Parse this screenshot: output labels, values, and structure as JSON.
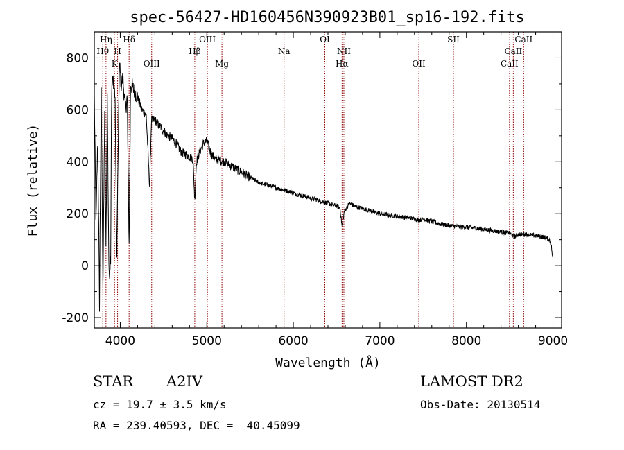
{
  "chart_data": {
    "type": "line",
    "title": "spec-56427-HD160456N390923B01_sp16-192.fits",
    "xlabel": "Wavelength (Å)",
    "ylabel": "Flux (relative)",
    "xlim": [
      3700,
      9100
    ],
    "ylim": [
      -240,
      900
    ],
    "xticks": [
      4000,
      5000,
      6000,
      7000,
      8000,
      9000
    ],
    "yticks": [
      -200,
      0,
      200,
      400,
      600,
      800
    ],
    "grid": false,
    "line_color": "#000000",
    "marker_color": "#8b0000",
    "series": [
      {
        "x": [
          3700,
          3720,
          3740,
          3760,
          3780,
          3800,
          3820,
          3835,
          3850,
          3870,
          3889,
          3900,
          3920,
          3940,
          3960,
          3970,
          3990,
          4010,
          4030,
          4060,
          4080,
          4102,
          4120,
          4150,
          4200,
          4250,
          4300,
          4340,
          4360,
          4400,
          4450,
          4500,
          4550,
          4600,
          4650,
          4700,
          4750,
          4800,
          4840,
          4861,
          4880,
          4920,
          4960,
          5000,
          5050,
          5100,
          5200,
          5300,
          5400,
          5500,
          5600,
          5700,
          5800,
          5900,
          6000,
          6100,
          6200,
          6300,
          6400,
          6500,
          6540,
          6563,
          6590,
          6650,
          6700,
          6800,
          6900,
          7000,
          7100,
          7200,
          7300,
          7400,
          7450,
          7500,
          7600,
          7700,
          7800,
          7900,
          8000,
          8100,
          8200,
          8300,
          8400,
          8500,
          8550,
          8600,
          8700,
          8800,
          8900,
          8960,
          8980,
          9000
        ],
        "y": [
          650,
          150,
          500,
          -150,
          700,
          -100,
          600,
          50,
          650,
          -50,
          40,
          680,
          720,
          650,
          0,
          300,
          780,
          700,
          720,
          600,
          650,
          80,
          700,
          680,
          650,
          600,
          580,
          300,
          560,
          560,
          540,
          520,
          500,
          490,
          470,
          440,
          430,
          420,
          410,
          250,
          400,
          440,
          470,
          480,
          430,
          410,
          400,
          380,
          360,
          340,
          320,
          310,
          300,
          290,
          280,
          270,
          260,
          250,
          240,
          230,
          220,
          150,
          210,
          240,
          230,
          220,
          210,
          200,
          195,
          190,
          185,
          180,
          175,
          180,
          170,
          160,
          155,
          150,
          148,
          145,
          140,
          135,
          130,
          125,
          110,
          120,
          120,
          115,
          110,
          100,
          80,
          20
        ]
      }
    ],
    "lines": [
      {
        "label": "Hη",
        "x": 3835,
        "row": 1
      },
      {
        "label": "Hθ",
        "x": 3798,
        "row": 2
      },
      {
        "label": "K",
        "x": 3934,
        "row": 3
      },
      {
        "label": "H",
        "x": 3969,
        "row": 2
      },
      {
        "label": "Hδ",
        "x": 4102,
        "row": 1
      },
      {
        "label": "OIII",
        "x": 4363,
        "row": 3
      },
      {
        "label": "Hβ",
        "x": 4861,
        "row": 2
      },
      {
        "label": "OIII",
        "x": 5007,
        "row": 1
      },
      {
        "label": "Mg",
        "x": 5175,
        "row": 3
      },
      {
        "label": "Na",
        "x": 5893,
        "row": 2
      },
      {
        "label": "OI",
        "x": 6364,
        "row": 1
      },
      {
        "label": "NII",
        "x": 6584,
        "row": 2
      },
      {
        "label": "Hα",
        "x": 6563,
        "row": 3
      },
      {
        "label": "OII",
        "x": 7450,
        "row": 3
      },
      {
        "label": "SII",
        "x": 7850,
        "row": 1
      },
      {
        "label": "CaII",
        "x": 8498,
        "row": 3
      },
      {
        "label": "CaII",
        "x": 8542,
        "row": 2
      },
      {
        "label": "CaII",
        "x": 8662,
        "row": 1
      }
    ]
  },
  "info": {
    "class_label": "STAR",
    "subclass": "A2IV",
    "survey": "LAMOST DR2",
    "cz": "cz = 19.7 ± 3.5 km/s",
    "obs_date": "Obs-Date: 20130514",
    "coords": "RA = 239.40593, DEC =  40.45099"
  }
}
